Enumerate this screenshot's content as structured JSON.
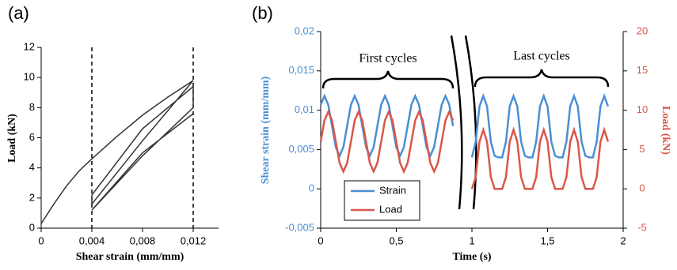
{
  "chart_data": [
    {
      "type": "line",
      "label": "(a)",
      "x_label": "Shear strain (mm/mm)",
      "y_label": "Load (kN)",
      "xlim": [
        0,
        0.014
      ],
      "xticks": [
        0,
        {
          "value": 0.004,
          "label": "0,004"
        },
        {
          "value": 0.008,
          "label": "0,008"
        },
        {
          "value": 0.012,
          "label": "0,012"
        }
      ],
      "ylim": [
        0,
        12
      ],
      "yticks": [
        0,
        2,
        4,
        6,
        8,
        10,
        12
      ],
      "vlines": [
        0.004,
        0.012
      ],
      "x": [
        0,
        0.001,
        0.002,
        0.003,
        0.004,
        0.006,
        0.008,
        0.01,
        0.012,
        0.008,
        0.004,
        0.004,
        0.008,
        0.012,
        0.012,
        0.008,
        0.004,
        0.008,
        0.012
      ],
      "series": [
        {
          "color": "#333333",
          "values": [
            0.3,
            1.6,
            2.8,
            3.8,
            4.6,
            6.1,
            7.5,
            8.7,
            9.8,
            5.8,
            1.6,
            2.2,
            6.6,
            9.4,
            8.0,
            4.8,
            1.2,
            5.0,
            7.6
          ]
        }
      ]
    },
    {
      "type": "line",
      "label": "(b)",
      "x_label": "Time (s)",
      "y_label": "Shear strain (mm/mm)",
      "y2_label": "Load (kN)",
      "annotations": [
        "First cycles",
        "Last cycles"
      ],
      "legend": "lower left",
      "xlim": [
        0,
        2
      ],
      "xticks": [
        0,
        {
          "value": 0.5,
          "label": "0,5"
        },
        1,
        {
          "value": 1.5,
          "label": "1,5"
        },
        2
      ],
      "ylim": [
        -0.005,
        0.02
      ],
      "yticks": [
        {
          "value": -0.005,
          "label": "-0,005"
        },
        0,
        {
          "value": 0.005,
          "label": "0,005"
        },
        {
          "value": 0.01,
          "label": "0,01"
        },
        {
          "value": 0.015,
          "label": "0,015"
        },
        {
          "value": 0.02,
          "label": "0,02"
        }
      ],
      "y2lim": [
        -5,
        20
      ],
      "y2ticks": [
        -5,
        0,
        5,
        10,
        15,
        20
      ],
      "x": [
        0,
        0.025,
        0.05,
        0.075,
        0.1,
        0.125,
        0.15,
        0.175,
        0.2,
        0.225,
        0.25,
        0.275,
        0.3,
        0.325,
        0.35,
        0.375,
        0.4,
        0.425,
        0.45,
        0.475,
        0.5,
        0.525,
        0.55,
        0.575,
        0.6,
        0.625,
        0.65,
        0.675,
        0.7,
        0.725,
        0.75,
        0.775,
        0.8,
        0.825,
        0.85,
        0.875,
        0.9,
        0.925,
        0.95,
        0.975,
        1,
        1.025,
        1.05,
        1.075,
        1.1,
        1.125,
        1.15,
        1.175,
        1.2,
        1.225,
        1.25,
        1.275,
        1.3,
        1.325,
        1.35,
        1.375,
        1.4,
        1.425,
        1.45,
        1.475,
        1.5,
        1.525,
        1.55,
        1.575,
        1.6,
        1.625,
        1.65,
        1.675,
        1.7,
        1.725,
        1.75,
        1.775,
        1.8,
        1.825,
        1.85,
        1.875,
        1.9
      ],
      "series": [
        {
          "name": "Strain",
          "color": "#4a8fd4",
          "values": [
            0.0107,
            0.0118,
            0.0107,
            0.008,
            0.0053,
            0.0042,
            0.0053,
            0.008,
            0.0107,
            0.0118,
            0.0107,
            0.008,
            0.0053,
            0.0042,
            0.0053,
            0.008,
            0.0107,
            0.0118,
            0.0107,
            0.008,
            0.0053,
            0.0042,
            0.0053,
            0.008,
            0.0107,
            0.0118,
            0.0107,
            0.008,
            0.0053,
            0.0042,
            0.0053,
            0.008,
            0.0107,
            0.0118,
            0.0107,
            0.008,
            null,
            null,
            null,
            null,
            0.004,
            0.006,
            0.0105,
            0.0118,
            0.0105,
            0.006,
            0.0042,
            0.004,
            0.004,
            0.006,
            0.0105,
            0.0118,
            0.0105,
            0.006,
            0.0042,
            0.004,
            0.004,
            0.006,
            0.0105,
            0.0118,
            0.0105,
            0.006,
            0.0042,
            0.004,
            0.004,
            0.006,
            0.0105,
            0.0118,
            0.0105,
            0.006,
            0.0042,
            0.004,
            0.004,
            0.006,
            0.0105,
            0.0118,
            0.0105
          ]
        },
        {
          "name": "Load",
          "color": "#d9574a",
          "axis": "y2",
          "values": [
            6,
            8.7,
            9.8,
            8.7,
            6,
            3.3,
            2.2,
            3.3,
            6,
            8.7,
            9.8,
            8.7,
            6,
            3.3,
            2.2,
            3.3,
            6,
            8.7,
            9.8,
            8.7,
            6,
            3.3,
            2.2,
            3.3,
            6,
            8.7,
            9.8,
            8.7,
            6,
            3.3,
            2.2,
            3.3,
            6,
            8.7,
            9.8,
            8.7,
            null,
            null,
            null,
            null,
            0,
            1.5,
            6,
            7.5,
            6,
            1.5,
            0,
            0,
            0,
            1.5,
            6,
            7.5,
            6,
            1.5,
            0,
            0,
            0,
            1.5,
            6,
            7.5,
            6,
            1.5,
            0,
            0,
            0,
            1.5,
            6,
            7.5,
            6,
            1.5,
            0,
            0,
            0,
            1.5,
            6,
            7.5,
            6
          ]
        }
      ]
    }
  ]
}
